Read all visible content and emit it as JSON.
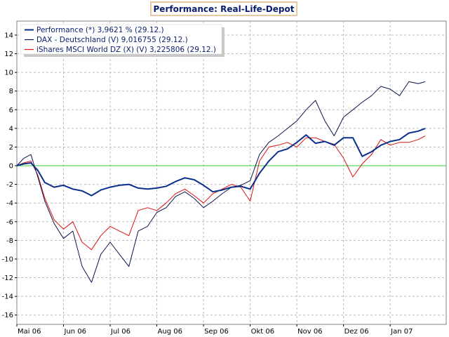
{
  "chart_data": {
    "type": "line",
    "title": "Performance: Real-Life-Depot",
    "xlabel": "",
    "ylabel": "",
    "ylim": [
      -17,
      15.5
    ],
    "yticks": [
      14,
      12,
      10,
      8,
      6,
      4,
      2,
      0,
      -2,
      -4,
      -6,
      -8,
      -10,
      -12,
      -14,
      -16
    ],
    "xlim": [
      0,
      9.2
    ],
    "x_tick_labels": [
      "Mai 06",
      "Jun 06",
      "Jul 06",
      "Aug 06",
      "Sep 06",
      "Okt 06",
      "Nov 06",
      "Dez 06",
      "Jan 07"
    ],
    "grid": true,
    "legend_position": "top-left",
    "zero_line_color": "#33cc33",
    "series": [
      {
        "name": "Performance (*) 3,9621 % (29.12.)",
        "color": "#0a2f8a",
        "width": 2,
        "x": [
          0,
          0.15,
          0.3,
          0.45,
          0.6,
          0.8,
          1.0,
          1.2,
          1.4,
          1.6,
          1.8,
          2.0,
          2.2,
          2.4,
          2.6,
          2.8,
          3.0,
          3.2,
          3.4,
          3.6,
          3.8,
          4.0,
          4.2,
          4.4,
          4.6,
          4.8,
          5.0,
          5.2,
          5.4,
          5.6,
          5.8,
          6.0,
          6.2,
          6.4,
          6.6,
          6.8,
          7.0,
          7.2,
          7.4,
          7.6,
          7.8,
          8.0,
          8.2,
          8.4,
          8.6,
          8.75
        ],
        "values": [
          0,
          0.2,
          0.3,
          -0.5,
          -1.8,
          -2.3,
          -2.1,
          -2.5,
          -2.7,
          -3.2,
          -2.6,
          -2.3,
          -2.1,
          -2.0,
          -2.4,
          -2.5,
          -2.4,
          -2.2,
          -1.7,
          -1.3,
          -1.5,
          -2.1,
          -2.8,
          -2.6,
          -2.3,
          -2.2,
          -2.5,
          -0.8,
          0.5,
          1.5,
          1.8,
          2.5,
          3.3,
          2.4,
          2.6,
          2.2,
          3.0,
          3.0,
          1.0,
          1.5,
          2.2,
          2.6,
          2.8,
          3.5,
          3.7,
          4.0
        ]
      },
      {
        "name": "DAX - Deutschland (V) 9,016755 (29.12.)",
        "color": "#0a1550",
        "width": 1,
        "x": [
          0,
          0.15,
          0.3,
          0.45,
          0.6,
          0.8,
          1.0,
          1.2,
          1.4,
          1.6,
          1.8,
          2.0,
          2.2,
          2.4,
          2.6,
          2.8,
          3.0,
          3.2,
          3.4,
          3.6,
          3.8,
          4.0,
          4.2,
          4.4,
          4.6,
          4.8,
          5.0,
          5.2,
          5.4,
          5.6,
          5.8,
          6.0,
          6.2,
          6.4,
          6.6,
          6.8,
          7.0,
          7.2,
          7.4,
          7.6,
          7.8,
          8.0,
          8.2,
          8.4,
          8.6,
          8.75
        ],
        "values": [
          0,
          0.8,
          1.2,
          -1.2,
          -3.8,
          -6.2,
          -7.8,
          -7.0,
          -10.8,
          -12.5,
          -9.5,
          -8.2,
          -9.5,
          -10.8,
          -7.0,
          -6.5,
          -5.0,
          -4.5,
          -3.3,
          -2.8,
          -3.5,
          -4.5,
          -3.8,
          -3.0,
          -2.3,
          -2.1,
          -1.6,
          1.2,
          2.5,
          3.2,
          4.0,
          4.8,
          6.0,
          7.0,
          4.8,
          3.2,
          5.2,
          6.0,
          6.8,
          7.5,
          8.5,
          8.2,
          7.5,
          9.0,
          8.8,
          9.0
        ]
      },
      {
        "name": "iShares MSCI World DZ (X) (V) 3,225806 (29.12.)",
        "color": "#dd1111",
        "width": 1,
        "x": [
          0,
          0.15,
          0.3,
          0.45,
          0.6,
          0.8,
          1.0,
          1.2,
          1.4,
          1.6,
          1.8,
          2.0,
          2.2,
          2.4,
          2.6,
          2.8,
          3.0,
          3.2,
          3.4,
          3.6,
          3.8,
          4.0,
          4.2,
          4.4,
          4.6,
          4.8,
          5.0,
          5.2,
          5.4,
          5.6,
          5.8,
          6.0,
          6.2,
          6.4,
          6.6,
          6.8,
          7.0,
          7.2,
          7.4,
          7.6,
          7.8,
          8.0,
          8.2,
          8.4,
          8.6,
          8.75
        ],
        "values": [
          0,
          0.3,
          0.5,
          -1.0,
          -3.5,
          -5.8,
          -6.8,
          -6.0,
          -8.2,
          -9.0,
          -7.5,
          -6.5,
          -7.0,
          -7.5,
          -4.8,
          -4.5,
          -4.8,
          -4.0,
          -3.0,
          -2.5,
          -3.2,
          -4.0,
          -3.0,
          -2.5,
          -2.0,
          -2.3,
          -3.8,
          0.5,
          2.0,
          2.2,
          2.5,
          2.0,
          3.0,
          3.0,
          2.6,
          2.3,
          0.8,
          -1.2,
          0.2,
          1.2,
          2.8,
          2.2,
          2.5,
          2.5,
          2.8,
          3.2
        ]
      },
      {
        "name": "",
        "color": "#33cc33",
        "width": 1,
        "x": [
          0,
          9.2
        ],
        "values": [
          0,
          0
        ]
      }
    ]
  }
}
